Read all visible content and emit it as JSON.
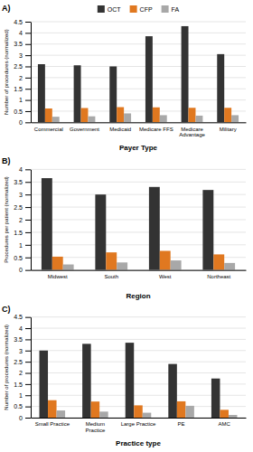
{
  "chart_data": [
    {
      "type": "bar",
      "title": "A)",
      "categories": [
        "Commercial",
        "Government",
        "Medicaid",
        "Medicare FFS",
        "Medicare\nAdvantage",
        "Military"
      ],
      "series": [
        {
          "name": "OCT",
          "color": "#333333",
          "values": [
            2.6,
            2.55,
            2.5,
            3.85,
            4.3,
            3.05
          ]
        },
        {
          "name": "CFP",
          "color": "#E07820",
          "values": [
            0.62,
            0.64,
            0.68,
            0.67,
            0.65,
            0.65
          ]
        },
        {
          "name": "FA",
          "color": "#A8A8A8",
          "values": [
            0.25,
            0.27,
            0.4,
            0.32,
            0.3,
            0.32
          ]
        }
      ],
      "ylabel": "Number of procedures (normalized)",
      "xlabel": "Payer Type",
      "ylim": [
        0,
        4.5
      ],
      "yticks": [
        0,
        0.5,
        1,
        1.5,
        2,
        2.5,
        3,
        3.5,
        4,
        4.5
      ],
      "grid": true,
      "legend": "top"
    },
    {
      "type": "bar",
      "title": "B)",
      "categories": [
        "Midwest",
        "South",
        "West",
        "Northeast"
      ],
      "series": [
        {
          "name": "OCT",
          "color": "#333333",
          "values": [
            3.65,
            3.0,
            3.3,
            3.18
          ]
        },
        {
          "name": "CFP",
          "color": "#E07820",
          "values": [
            0.53,
            0.7,
            0.76,
            0.62
          ]
        },
        {
          "name": "FA",
          "color": "#A8A8A8",
          "values": [
            0.22,
            0.3,
            0.38,
            0.28
          ]
        }
      ],
      "ylabel": "Procedures per patient (normalized)",
      "xlabel": "Region",
      "ylim": [
        0,
        4.0
      ],
      "yticks": [
        0,
        0.5,
        1,
        1.5,
        2,
        2.5,
        3,
        3.5,
        4
      ],
      "grid": true,
      "legend": false
    },
    {
      "type": "bar",
      "title": "C)",
      "categories": [
        "Small Practice",
        "Medium\nPractice",
        "Large Practice",
        "PE",
        "AMC"
      ],
      "series": [
        {
          "name": "OCT",
          "color": "#333333",
          "values": [
            3.0,
            3.3,
            3.35,
            2.4,
            1.75
          ]
        },
        {
          "name": "CFP",
          "color": "#E07820",
          "values": [
            0.78,
            0.72,
            0.55,
            0.73,
            0.35
          ]
        },
        {
          "name": "FA",
          "color": "#A8A8A8",
          "values": [
            0.32,
            0.27,
            0.22,
            0.53,
            0.12
          ]
        }
      ],
      "ylabel": "Number of procedures (normalized)",
      "xlabel": "Practice type",
      "ylim": [
        0,
        4.5
      ],
      "yticks": [
        0,
        0.5,
        1,
        1.5,
        2,
        2.5,
        3,
        3.5,
        4,
        4.5
      ],
      "grid": true,
      "legend": false
    }
  ]
}
